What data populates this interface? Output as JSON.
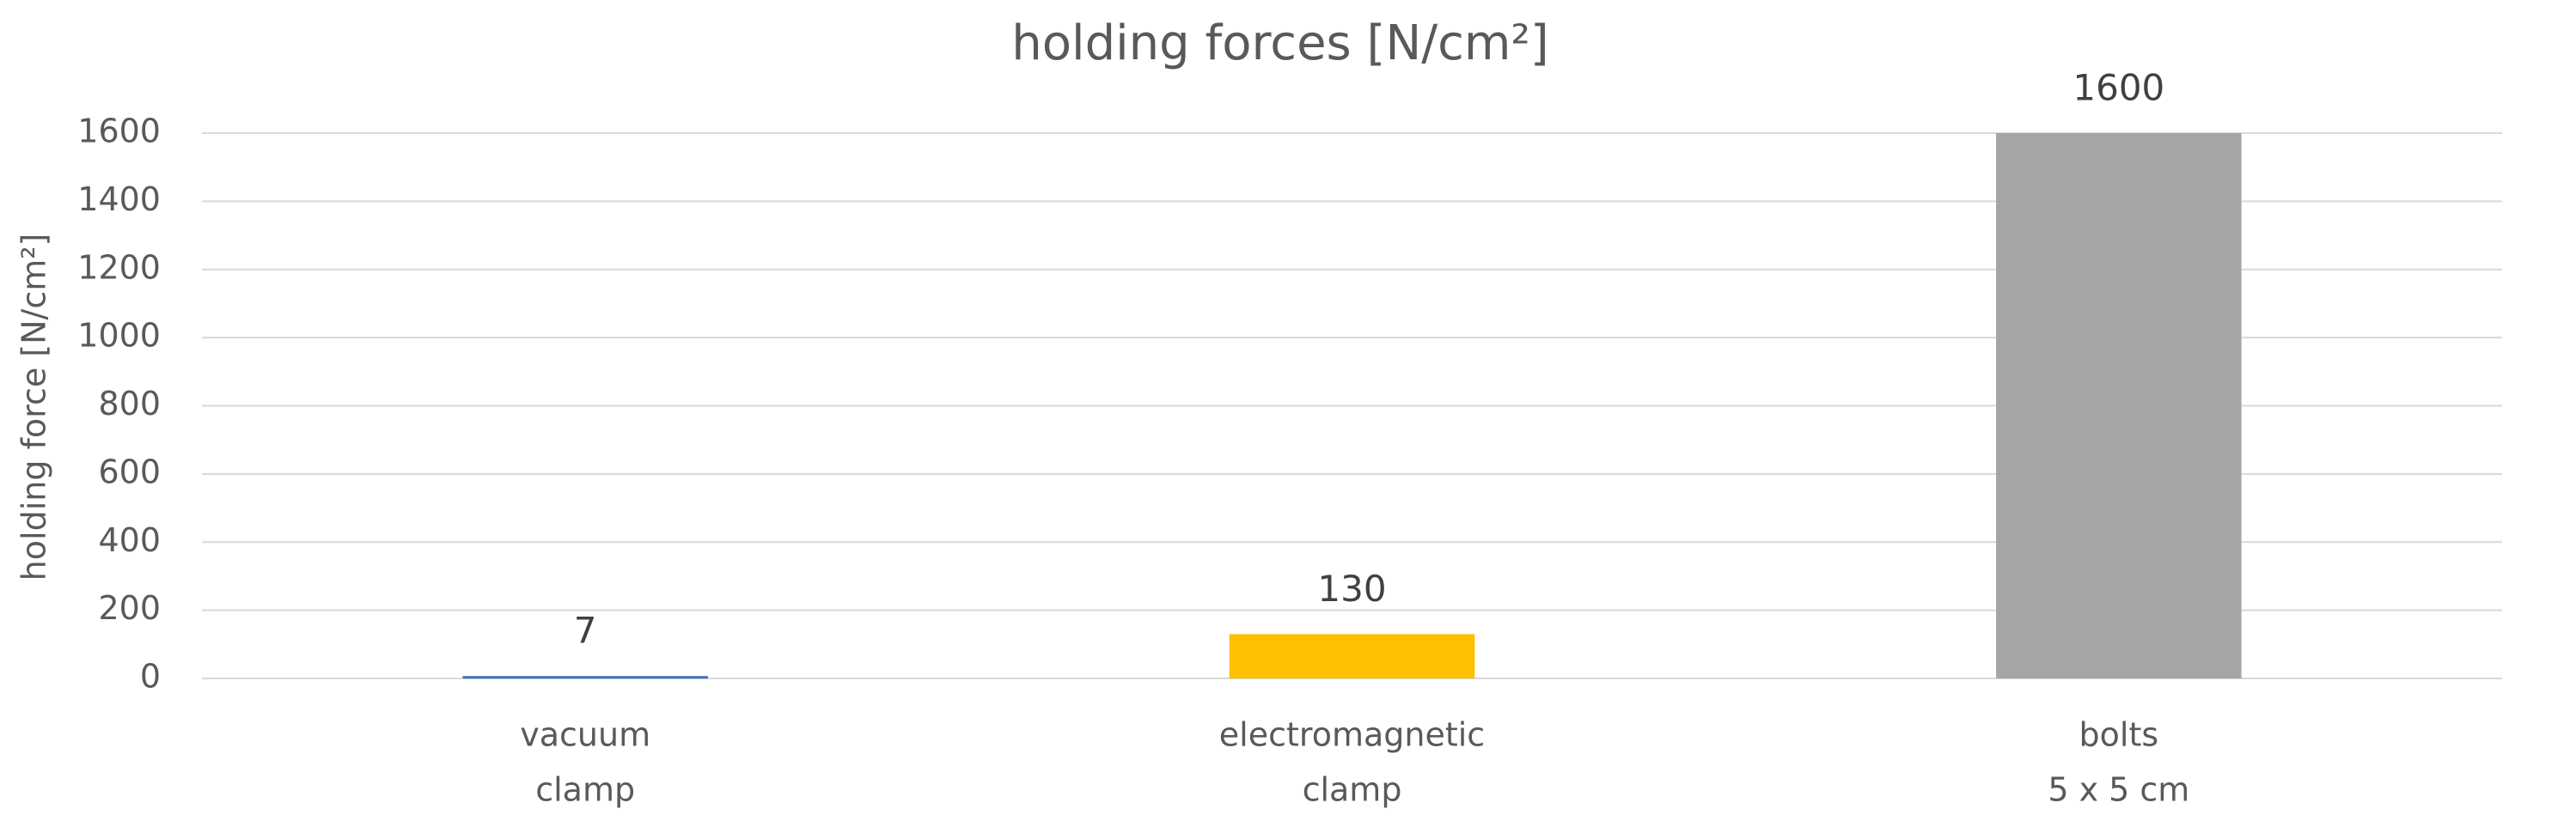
{
  "chart_data": {
    "type": "bar",
    "title": "holding forces [N/cm²]",
    "y_label": "holding force [N/cm²]",
    "categories": [
      [
        "vacuum",
        "clamp"
      ],
      [
        "electromagnetic",
        "clamp"
      ],
      [
        "bolts",
        "5 x 5 cm"
      ]
    ],
    "values": [
      7,
      130,
      1600
    ],
    "colors": [
      "#4472c4",
      "#ffc000",
      "#a5a5a5"
    ],
    "ylim": [
      0,
      1600
    ],
    "yticks": [
      0,
      200,
      400,
      600,
      800,
      1000,
      1200,
      1400,
      1600
    ],
    "grid": true,
    "data_labels": true
  }
}
